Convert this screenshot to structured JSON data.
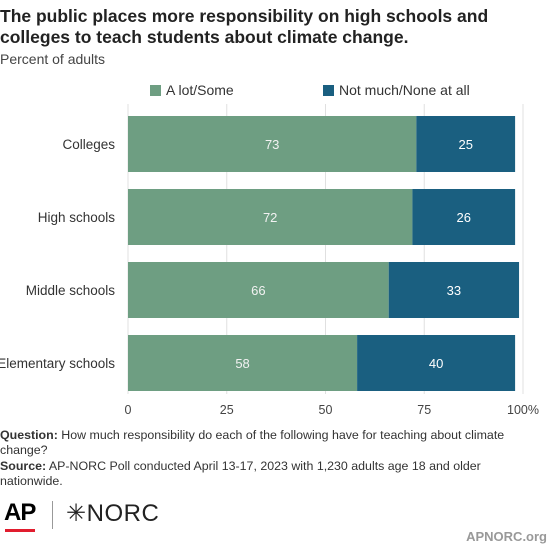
{
  "title": "The public places more responsibility on high schools and colleges to teach students about climate change.",
  "subtitle": "Percent of adults",
  "colors": {
    "a_lot_some": "#6e9e82",
    "not_much": "#1a5f80",
    "grid": "#e0e0e0",
    "ap_red": "#e11d2e"
  },
  "chart_data": {
    "type": "bar",
    "orientation": "horizontal",
    "stacked": true,
    "categories": [
      "Colleges",
      "High schools",
      "Middle schools",
      "Elementary schools"
    ],
    "series": [
      {
        "name": "A lot/Some",
        "values": [
          73,
          72,
          66,
          58
        ]
      },
      {
        "name": "Not much/None at all",
        "values": [
          25,
          26,
          33,
          40
        ]
      }
    ],
    "xlim": [
      0,
      100
    ],
    "x_ticks": [
      "0",
      "25",
      "50",
      "75",
      "100%"
    ],
    "grid": true,
    "legend_position": "top"
  },
  "footer": {
    "question_label": "Question:",
    "question_text": "How much responsibility do each of the following have for teaching about climate change?",
    "source_label": "Source:",
    "source_text": "AP-NORC Poll conducted April 13-17, 2023 with 1,230 adults age 18 and older nationwide."
  },
  "logos": {
    "ap": "AP",
    "norc": "NORC",
    "norc_icon": "asterisk-icon"
  },
  "site": "APNORC.org"
}
